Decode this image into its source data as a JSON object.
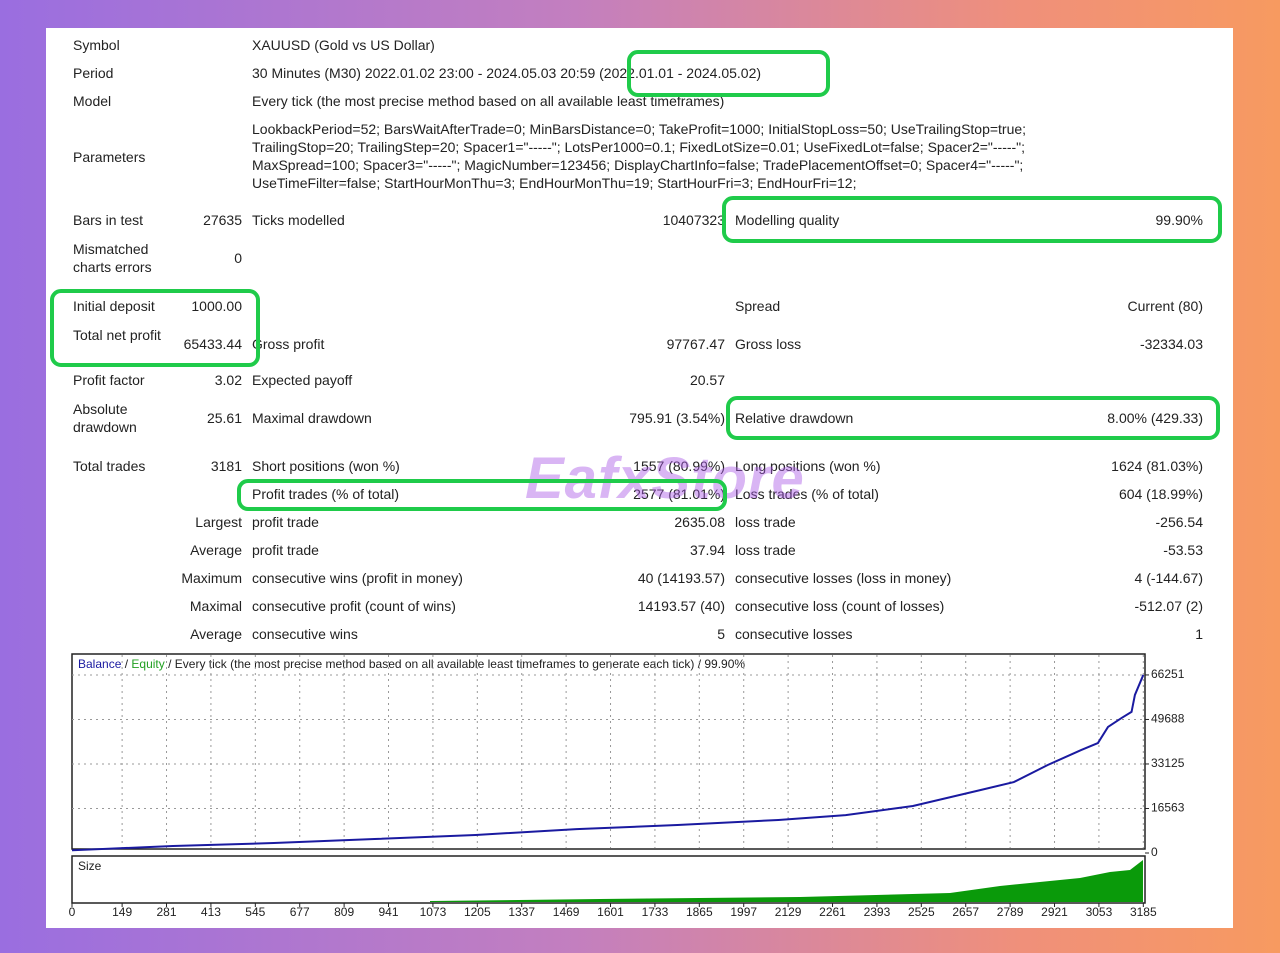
{
  "report": {
    "rows": [
      [
        "Symbol",
        null,
        "XAUUSD (Gold vs US Dollar)",
        null,
        null,
        null
      ],
      [
        "Period",
        null,
        "30 Minutes (M30) 2022.01.02 23:00 - 2024.05.03 20:59 (2022.01.01 - 2024.05.02)",
        null,
        null,
        null
      ],
      [
        "Model",
        null,
        "Every tick (the most precise method based on all available least timeframes)",
        null,
        null,
        null
      ],
      [
        "Bars in test",
        "27635",
        "Ticks modelled",
        "10407323",
        "Modelling quality",
        "99.90%"
      ],
      [
        "Mismatched charts errors",
        "0",
        null,
        null,
        null,
        null
      ],
      [
        "Initial deposit",
        "1000.00",
        null,
        null,
        "Spread",
        "Current (80)"
      ],
      [
        "Total net profit",
        "65433.44",
        "Gross profit",
        "97767.47",
        "Gross loss",
        "-32334.03"
      ],
      [
        "Profit factor",
        "3.02",
        "Expected payoff",
        "20.57",
        null,
        null
      ],
      [
        "Absolute drawdown",
        "25.61",
        "Maximal drawdown",
        "795.91 (3.54%)",
        "Relative drawdown",
        "8.00% (429.33)"
      ],
      [
        "Total trades",
        "3181",
        "Short positions (won %)",
        "1557 (80.99%)",
        "Long positions (won %)",
        "1624 (81.03%)"
      ],
      [
        null,
        null,
        "Profit trades (% of total)",
        "2577 (81.01%)",
        "Loss trades (% of total)",
        "604 (18.99%)"
      ],
      [
        null,
        "Largest",
        "profit trade",
        "2635.08",
        "loss trade",
        "-256.54"
      ],
      [
        null,
        "Average",
        "profit trade",
        "37.94",
        "loss trade",
        "-53.53"
      ],
      [
        null,
        "Maximum",
        "consecutive wins (profit in money)",
        "40 (14193.57)",
        "consecutive losses (loss in money)",
        "4 (-144.67)"
      ],
      [
        null,
        "Maximal",
        "consecutive profit (count of wins)",
        "14193.57 (40)",
        "consecutive loss (count of losses)",
        "-512.07 (2)"
      ],
      [
        null,
        "Average",
        "consecutive wins",
        "5",
        "consecutive losses",
        "1"
      ]
    ],
    "parameters_label": "Parameters",
    "parameters": [
      "LookbackPeriod=52; BarsWaitAfterTrade=0; MinBarsDistance=0; TakeProfit=1000; InitialStopLoss=50; UseTrailingStop=true;",
      "TrailingStop=20; TrailingStep=20; Spacer1=\"-----\"; LotsPer1000=0.1; FixedLotSize=0.01; UseFixedLot=false; Spacer2=\"-----\";",
      "MaxSpread=100; Spacer3=\"-----\"; MagicNumber=123456; DisplayChartInfo=false; TradePlacementOffset=0; Spacer4=\"-----\";",
      "UseTimeFilter=false; StartHourMonThu=3; EndHourMonThu=19; StartHourFri=3; EndHourFri=12;"
    ],
    "watermark": "EafxStore"
  },
  "chart_data": {
    "type": "line",
    "series": [
      {
        "name": "Balance",
        "color": "#1a1aa0",
        "values": [
          1000,
          2600,
          3700,
          5200,
          6700,
          8900,
          10400,
          12300,
          14100,
          17500,
          23400,
          26400,
          32700,
          38300,
          40900,
          46900,
          50200,
          52500,
          58800,
          66251
        ]
      }
    ],
    "x": [
      0,
      300,
      600,
      900,
      1200,
      1500,
      1800,
      2100,
      2300,
      2500,
      2700,
      2800,
      2900,
      3000,
      3050,
      3080,
      3120,
      3150,
      3160,
      3185
    ],
    "legend_separator": "/",
    "equity_label": "Equity",
    "equity_color": "#22a022",
    "subtitle": "/ Every tick (the most precise method based on all available least timeframes to generate each tick) / 99.90%",
    "size_label": "Size",
    "xlim": [
      0,
      3190
    ],
    "xticks": [
      0,
      149,
      281,
      413,
      545,
      677,
      809,
      941,
      1073,
      1205,
      1337,
      1469,
      1601,
      1733,
      1865,
      1997,
      2129,
      2261,
      2393,
      2525,
      2657,
      2789,
      2921,
      3053,
      3185
    ],
    "ylim": [
      0,
      73300
    ],
    "yticks": [
      0,
      16563,
      33125,
      49688,
      66251
    ],
    "grid": true
  }
}
